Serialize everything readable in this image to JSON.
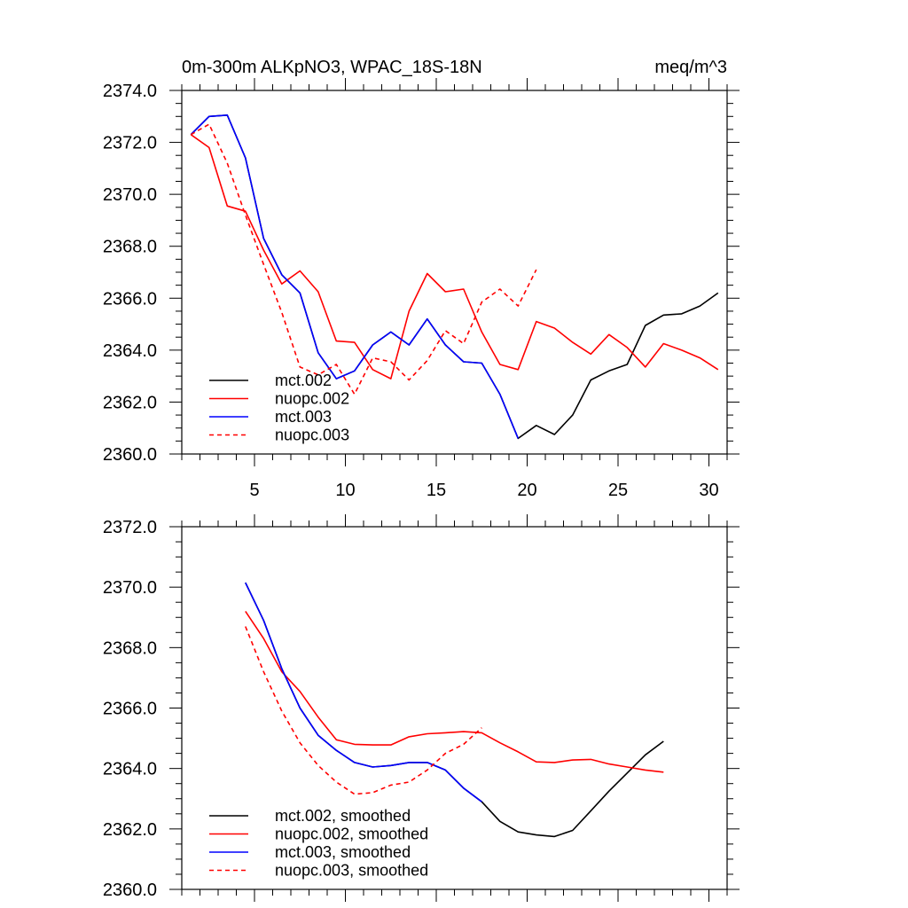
{
  "chart_data": [
    {
      "type": "line",
      "title_left": "0m-300m ALKpNO3, WPAC_18S-18N",
      "title_right": "meq/m^3",
      "xlim": [
        1,
        31
      ],
      "ylim": [
        2360,
        2374
      ],
      "xticks": [
        5,
        10,
        15,
        20,
        25,
        30
      ],
      "yticks": [
        2360,
        2362,
        2364,
        2366,
        2368,
        2370,
        2372,
        2374
      ],
      "ytick_labels": [
        "2360.0",
        "2362.0",
        "2364.0",
        "2366.0",
        "2368.0",
        "2370.0",
        "2372.0",
        "2374.0"
      ],
      "series": [
        {
          "name": "mct.002",
          "color": "#000000",
          "dash": false,
          "x": [
            1.5,
            2.5,
            3.5,
            4.5,
            5.5,
            6.5,
            7.5,
            8.5,
            9.5,
            10.5,
            11.5,
            12.5,
            13.5,
            14.5,
            15.5,
            16.5,
            17.5,
            18.5,
            19.5,
            20.5,
            21.5,
            22.5,
            23.5,
            24.5,
            25.5,
            26.5,
            27.5,
            28.5,
            29.5,
            30.5
          ],
          "values": [
            2372.3,
            2373.0,
            2373.05,
            2371.4,
            2368.3,
            2366.9,
            2366.2,
            2363.9,
            2362.9,
            2363.2,
            2364.2,
            2364.7,
            2364.2,
            2365.2,
            2364.2,
            2363.55,
            2363.5,
            2362.3,
            2360.6,
            2361.1,
            2360.75,
            2361.5,
            2362.85,
            2363.2,
            2363.45,
            2364.95,
            2365.35,
            2365.4,
            2365.7,
            2366.2
          ]
        },
        {
          "name": "nuopc.002",
          "color": "#ff0000",
          "dash": false,
          "x": [
            1.5,
            2.5,
            3.5,
            4.5,
            5.5,
            6.5,
            7.5,
            8.5,
            9.5,
            10.5,
            11.5,
            12.5,
            13.5,
            14.5,
            15.5,
            16.5,
            17.5,
            18.5,
            19.5,
            20.5,
            21.5,
            22.5,
            23.5,
            24.5,
            25.5,
            26.5,
            27.5,
            28.5,
            29.5,
            30.5
          ],
          "values": [
            2372.3,
            2371.8,
            2369.55,
            2369.35,
            2367.85,
            2366.55,
            2367.05,
            2366.25,
            2364.35,
            2364.3,
            2363.25,
            2362.9,
            2365.5,
            2366.95,
            2366.25,
            2366.35,
            2364.7,
            2363.45,
            2363.25,
            2365.1,
            2364.85,
            2364.3,
            2363.85,
            2364.6,
            2364.1,
            2363.35,
            2364.25,
            2364.0,
            2363.7,
            2363.25
          ]
        },
        {
          "name": "mct.003",
          "color": "#0000ff",
          "dash": false,
          "x": [
            1.5,
            2.5,
            3.5,
            4.5,
            5.5,
            6.5,
            7.5,
            8.5,
            9.5,
            10.5,
            11.5,
            12.5,
            13.5,
            14.5,
            15.5,
            16.5,
            17.5,
            18.5,
            19.5
          ],
          "values": [
            2372.3,
            2373.0,
            2373.05,
            2371.4,
            2368.3,
            2366.9,
            2366.2,
            2363.9,
            2362.9,
            2363.2,
            2364.2,
            2364.7,
            2364.2,
            2365.2,
            2364.2,
            2363.55,
            2363.5,
            2362.3,
            2360.6
          ]
        },
        {
          "name": "nuopc.003",
          "color": "#ff0000",
          "dash": true,
          "x": [
            1.5,
            2.5,
            3.5,
            4.5,
            5.5,
            6.5,
            7.5,
            8.5,
            9.5,
            10.5,
            11.5,
            12.5,
            13.5,
            14.5,
            15.5,
            16.5,
            17.5,
            18.5,
            19.5,
            20.5
          ],
          "values": [
            2372.3,
            2372.7,
            2371.2,
            2369.2,
            2367.3,
            2365.45,
            2363.35,
            2363.05,
            2363.45,
            2362.3,
            2363.7,
            2363.55,
            2362.85,
            2363.6,
            2364.75,
            2364.25,
            2365.85,
            2366.35,
            2365.7,
            2367.1
          ]
        }
      ]
    },
    {
      "type": "line",
      "xlim": [
        1,
        31
      ],
      "ylim": [
        2360,
        2372
      ],
      "xticks": [
        5,
        10,
        15,
        20,
        25,
        30
      ],
      "yticks": [
        2360,
        2362,
        2364,
        2366,
        2368,
        2370,
        2372
      ],
      "ytick_labels": [
        "2360.0",
        "2362.0",
        "2364.0",
        "2366.0",
        "2368.0",
        "2370.0",
        "2372.0"
      ],
      "series": [
        {
          "name": "mct.002, smoothed",
          "color": "#000000",
          "dash": false,
          "x": [
            4.5,
            5.5,
            6.5,
            7.5,
            8.5,
            9.5,
            10.5,
            11.5,
            12.5,
            13.5,
            14.5,
            15.5,
            16.5,
            17.5,
            18.5,
            19.5,
            20.5,
            21.5,
            22.5,
            23.5,
            24.5,
            25.5,
            26.5,
            27.5
          ],
          "values": [
            2370.15,
            2368.9,
            2367.3,
            2366.0,
            2365.1,
            2364.6,
            2364.2,
            2364.05,
            2364.1,
            2364.2,
            2364.2,
            2363.95,
            2363.35,
            2362.9,
            2362.25,
            2361.9,
            2361.8,
            2361.75,
            2361.95,
            2362.6,
            2363.25,
            2363.85,
            2364.45,
            2364.9
          ]
        },
        {
          "name": "nuopc.002, smoothed",
          "color": "#ff0000",
          "dash": false,
          "x": [
            4.5,
            5.5,
            6.5,
            7.5,
            8.5,
            9.5,
            10.5,
            11.5,
            12.5,
            13.5,
            14.5,
            15.5,
            16.5,
            17.5,
            18.5,
            19.5,
            20.5,
            21.5,
            22.5,
            23.5,
            24.5,
            25.5,
            26.5,
            27.5
          ],
          "values": [
            2369.2,
            2368.3,
            2367.2,
            2366.55,
            2365.7,
            2364.95,
            2364.8,
            2364.78,
            2364.78,
            2365.05,
            2365.15,
            2365.18,
            2365.22,
            2365.18,
            2364.85,
            2364.55,
            2364.22,
            2364.2,
            2364.28,
            2364.3,
            2364.15,
            2364.05,
            2363.95,
            2363.88
          ]
        },
        {
          "name": "mct.003, smoothed",
          "color": "#0000ff",
          "dash": false,
          "x": [
            4.5,
            5.5,
            6.5,
            7.5,
            8.5,
            9.5,
            10.5,
            11.5,
            12.5,
            13.5,
            14.5,
            15.5,
            16.5,
            17.5
          ],
          "values": [
            2370.15,
            2368.9,
            2367.3,
            2366.0,
            2365.1,
            2364.6,
            2364.2,
            2364.05,
            2364.1,
            2364.2,
            2364.2,
            2363.95,
            2363.35,
            2362.9
          ]
        },
        {
          "name": "nuopc.003, smoothed",
          "color": "#ff0000",
          "dash": true,
          "x": [
            4.5,
            5.5,
            6.5,
            7.5,
            8.5,
            9.5,
            10.5,
            11.5,
            12.5,
            13.5,
            14.5,
            15.5,
            16.5,
            17.5
          ],
          "values": [
            2368.7,
            2367.2,
            2365.9,
            2364.85,
            2364.1,
            2363.55,
            2363.15,
            2363.2,
            2363.45,
            2363.55,
            2363.95,
            2364.5,
            2364.8,
            2365.35
          ]
        }
      ]
    }
  ]
}
